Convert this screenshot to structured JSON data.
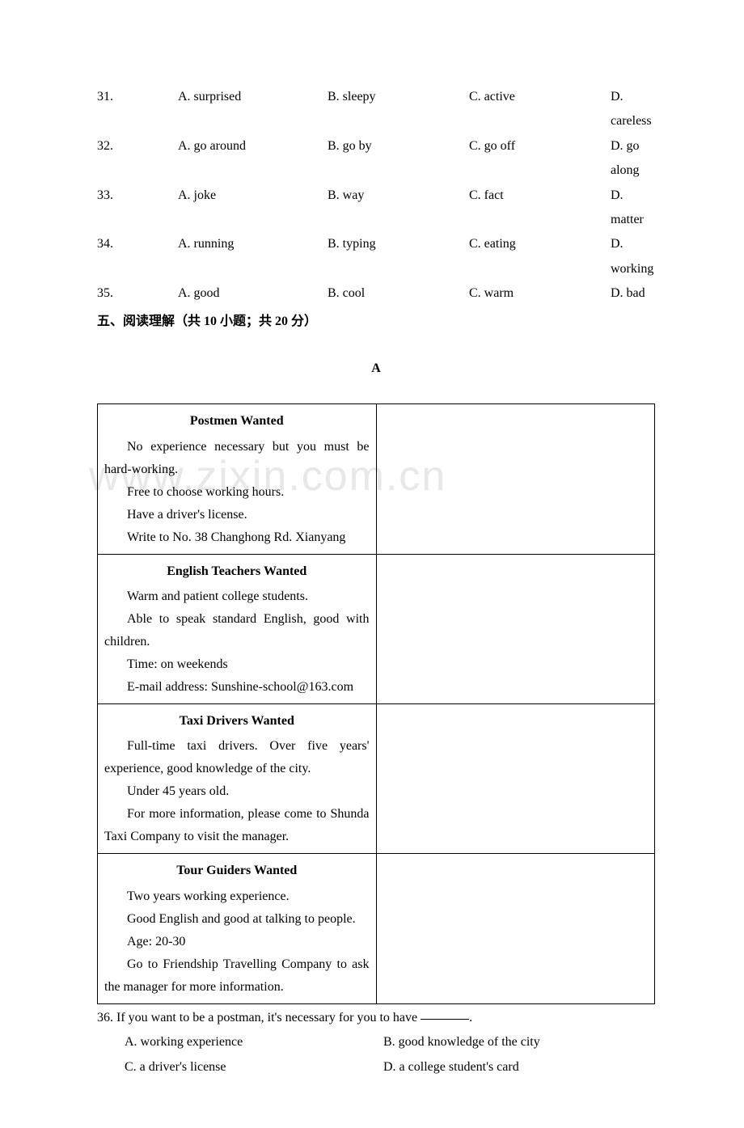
{
  "watermark": "www.zixin.com.cn",
  "mcq": [
    {
      "num": "31.",
      "a": "A. surprised",
      "b": "B. sleepy",
      "c": "C. active",
      "d": "D. careless"
    },
    {
      "num": "32.",
      "a": "A. go around",
      "b": "B. go by",
      "c": "C. go off",
      "d": "D. go along"
    },
    {
      "num": "33.",
      "a": "A. joke",
      "b": "B. way",
      "c": "C. fact",
      "d": "D. matter"
    },
    {
      "num": "34.",
      "a": "A. running",
      "b": "B. typing",
      "c": "C. eating",
      "d": "D. working"
    },
    {
      "num": "35.",
      "a": "A. good",
      "b": "B. cool",
      "c": "C. warm",
      "d": "D. bad"
    }
  ],
  "section_heading": "五、阅读理解（共 10 小题；共 20 分）",
  "passage_label": "A",
  "ads": [
    {
      "title": "Postmen Wanted",
      "lines": [
        "No experience necessary but you must be hard-working.",
        "Free to choose working hours.",
        "Have a driver's license.",
        "Write to No. 38 Changhong Rd. Xianyang"
      ],
      "first_line_noindent": false,
      "continuation_index": 0
    },
    {
      "title": "English Teachers Wanted",
      "lines": [
        "Warm and patient college students.",
        "Able to speak standard English, good with children.",
        "Time: on weekends",
        "E-mail address: Sunshine-school@163.com"
      ],
      "continuation_index": 1
    },
    {
      "title": "Taxi Drivers Wanted",
      "lines": [
        "Full-time taxi drivers. Over five years' experience, good knowledge of the city.",
        "Under 45 years old.",
        "For more information, please come to Shunda Taxi Company to visit the manager."
      ],
      "continuation_index": -1
    },
    {
      "title": "Tour Guiders Wanted",
      "lines": [
        "Two years working experience.",
        "Good English and good at talking to people.",
        "Age: 20-30",
        "Go to Friendship Travelling Company to ask the manager for more information."
      ],
      "continuation_index": 3
    }
  ],
  "question": {
    "stem_pre": "36. If you want to be a postman, it's necessary for you to have ",
    "stem_post": ".",
    "opts": {
      "a": "A. working experience",
      "b": "B. good knowledge of the city",
      "c": "C. a driver's license",
      "d": "D. a college student's card"
    }
  }
}
